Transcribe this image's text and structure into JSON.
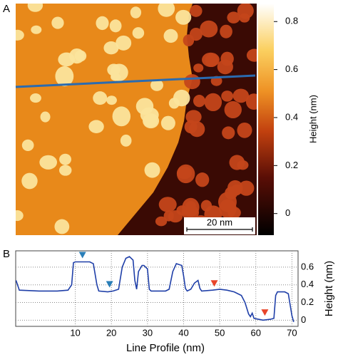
{
  "chart_data": [
    {
      "type": "image",
      "panel_label": "A",
      "colorbar_label": "Height (nm)",
      "colorbar_lim": [
        -0.09,
        0.875
      ],
      "colorbar_ticks": [
        0,
        0.2,
        0.4,
        0.6,
        0.8
      ],
      "scale_bar_label": "20 nm"
    },
    {
      "type": "line",
      "panel_label": "B",
      "color": "#1f3fa8",
      "x": [
        -6.4,
        -5.5,
        0,
        5,
        8,
        9,
        9.5,
        10,
        14,
        15,
        16,
        16.5,
        19,
        20.5,
        22,
        23,
        24,
        25,
        26,
        26.5,
        27,
        27.5,
        28.5,
        29,
        30,
        30.5,
        31,
        35,
        36,
        37,
        38,
        39.5,
        40,
        40.5,
        41,
        42,
        43,
        44,
        44.5,
        45,
        48,
        50,
        52,
        54,
        56,
        57,
        58,
        58.5,
        59,
        59.5,
        62,
        64,
        65,
        65.5,
        66,
        68,
        69,
        70,
        70.5
      ],
      "values": [
        0.45,
        0.34,
        0.33,
        0.33,
        0.34,
        0.4,
        0.65,
        0.66,
        0.66,
        0.64,
        0.4,
        0.33,
        0.32,
        0.33,
        0.35,
        0.6,
        0.7,
        0.72,
        0.68,
        0.45,
        0.35,
        0.55,
        0.62,
        0.62,
        0.58,
        0.35,
        0.33,
        0.33,
        0.35,
        0.55,
        0.64,
        0.62,
        0.5,
        0.36,
        0.33,
        0.35,
        0.42,
        0.45,
        0.36,
        0.33,
        0.34,
        0.35,
        0.34,
        0.32,
        0.28,
        0.2,
        0.07,
        0.04,
        0.08,
        0.02,
        0.0,
        0.01,
        0.02,
        0.28,
        0.32,
        0.32,
        0.3,
        0.05,
        -0.02
      ],
      "xlim": [
        -6.5,
        71.7
      ],
      "xticks": [
        10,
        20,
        30,
        40,
        50,
        60,
        70
      ],
      "ylim": [
        -0.07,
        0.785
      ],
      "yticks": [
        0,
        0.2,
        0.4,
        0.6
      ],
      "grid": true,
      "y_label": "Height  (nm)",
      "x_label": "Line Profile (nm)",
      "markers": [
        {
          "x": 12,
          "y": 0.7,
          "color": "#2a7fb8"
        },
        {
          "x": 19.5,
          "y": 0.37,
          "color": "#2a7fb8"
        },
        {
          "x": 48.5,
          "y": 0.38,
          "color": "#e8452a"
        },
        {
          "x": 62.5,
          "y": 0.05,
          "color": "#e8452a"
        }
      ]
    }
  ]
}
